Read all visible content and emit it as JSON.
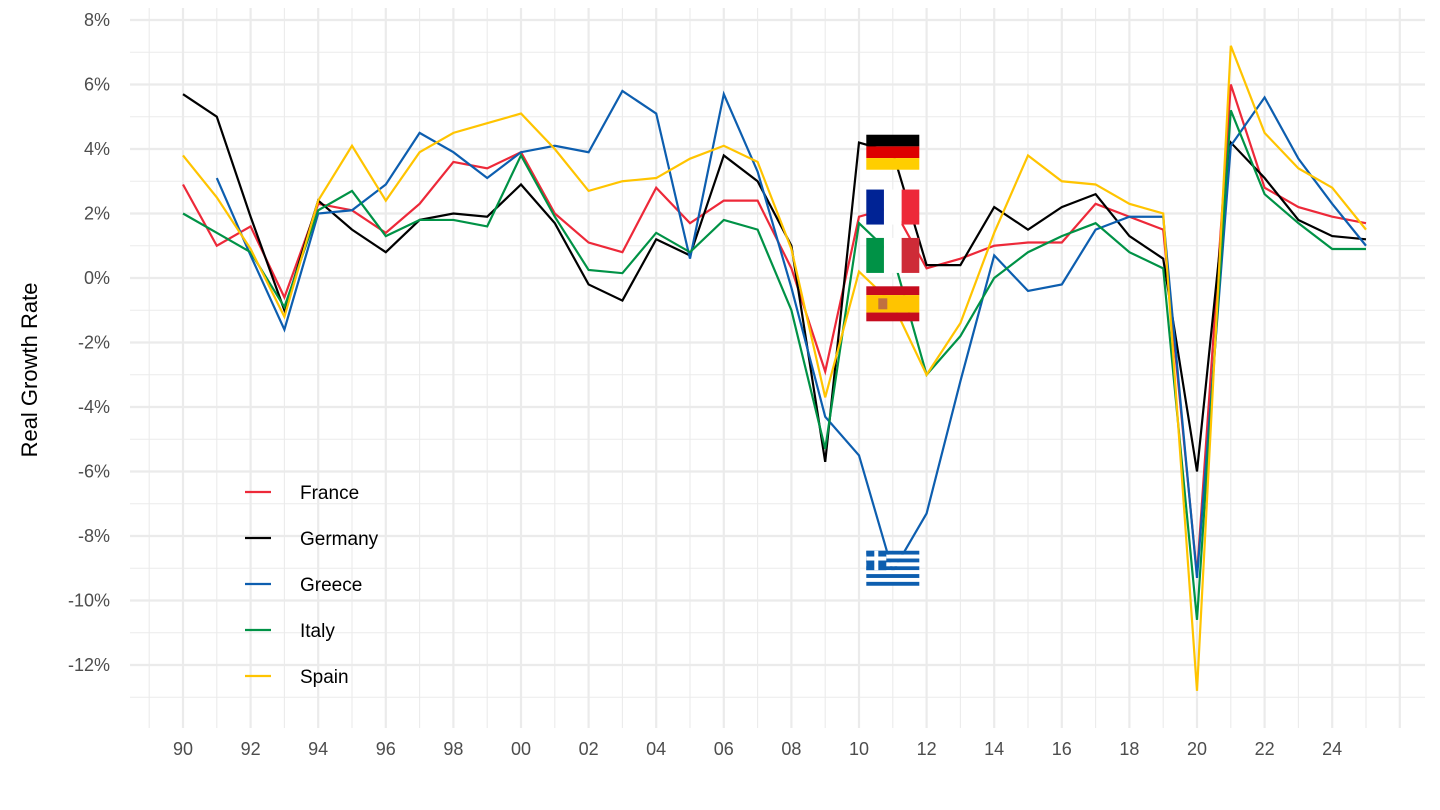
{
  "chart_data": {
    "type": "line",
    "title": "",
    "xlabel": "",
    "ylabel": "Real Growth Rate",
    "xlim": [
      1989,
      2026
    ],
    "ylim": [
      -13,
      8
    ],
    "x_ticks": [
      1990,
      1992,
      1994,
      1996,
      1998,
      2000,
      2002,
      2004,
      2006,
      2008,
      2010,
      2012,
      2014,
      2016,
      2018,
      2020,
      2022,
      2024
    ],
    "x_tick_labels": [
      "90",
      "92",
      "94",
      "96",
      "98",
      "00",
      "02",
      "04",
      "06",
      "08",
      "10",
      "12",
      "14",
      "16",
      "18",
      "20",
      "22",
      "24"
    ],
    "y_ticks": [
      8,
      6,
      4,
      2,
      0,
      -2,
      -4,
      -6,
      -8,
      -10,
      -12
    ],
    "y_tick_labels": [
      "8%",
      "6%",
      "4%",
      "2%",
      "0%",
      "-2%",
      "-4%",
      "-6%",
      "-8%",
      "-10%",
      "-12%"
    ],
    "grid": true,
    "legend_position": "bottom-left",
    "series": [
      {
        "name": "France",
        "color": "#ED2939",
        "start": 1990,
        "values": [
          2.9,
          1.0,
          1.6,
          -0.6,
          2.3,
          2.1,
          1.4,
          2.3,
          3.6,
          3.4,
          3.9,
          2.0,
          1.1,
          0.8,
          2.8,
          1.7,
          2.4,
          2.4,
          0.3,
          -2.9,
          1.9,
          2.2,
          0.3,
          0.6,
          1.0,
          1.1,
          1.1,
          2.3,
          1.9,
          1.5,
          -9.2,
          6.0,
          2.8,
          2.2,
          1.9,
          1.7
        ]
      },
      {
        "name": "Germany",
        "color": "#000000",
        "start": 1990,
        "values": [
          5.7,
          5.0,
          1.9,
          -1.0,
          2.4,
          1.5,
          0.8,
          1.8,
          2.0,
          1.9,
          2.9,
          1.7,
          -0.2,
          -0.7,
          1.2,
          0.7,
          3.8,
          3.0,
          1.0,
          -5.7,
          4.2,
          3.9,
          0.4,
          0.4,
          2.2,
          1.5,
          2.2,
          2.6,
          1.3,
          0.6,
          -6.0,
          4.2,
          3.1,
          1.8,
          1.3,
          1.2
        ]
      },
      {
        "name": "Greece",
        "color": "#0D5EAF",
        "start": 1991,
        "values": [
          3.1,
          0.7,
          -1.6,
          2.0,
          2.1,
          2.9,
          4.5,
          3.9,
          3.1,
          3.9,
          4.1,
          3.9,
          5.8,
          5.1,
          0.6,
          5.7,
          3.3,
          -0.3,
          -4.3,
          -5.5,
          -9.1,
          -7.3,
          -3.2,
          0.7,
          -0.4,
          -0.2,
          1.5,
          1.9,
          1.9,
          -9.3,
          4.1,
          5.6,
          3.7,
          2.3,
          1.0
        ]
      },
      {
        "name": "Italy",
        "color": "#009246",
        "start": 1990,
        "values": [
          2.0,
          1.4,
          0.8,
          -0.9,
          2.1,
          2.7,
          1.3,
          1.8,
          1.8,
          1.6,
          3.8,
          1.9,
          0.25,
          0.15,
          1.4,
          0.8,
          1.8,
          1.5,
          -1.0,
          -5.3,
          1.7,
          0.7,
          -3.0,
          -1.8,
          0.0,
          0.8,
          1.3,
          1.7,
          0.8,
          0.3,
          -10.6,
          5.2,
          2.6,
          1.7,
          0.9,
          0.9
        ]
      },
      {
        "name": "Spain",
        "color": "#FFC400",
        "start": 1990,
        "values": [
          3.8,
          2.5,
          0.9,
          -1.2,
          2.4,
          4.1,
          2.4,
          3.9,
          4.5,
          4.8,
          5.1,
          4.0,
          2.7,
          3.0,
          3.1,
          3.7,
          4.1,
          3.6,
          0.9,
          -3.7,
          0.2,
          -0.8,
          -3.0,
          -1.4,
          1.4,
          3.8,
          3.0,
          2.9,
          2.3,
          2.0,
          -12.8,
          7.2,
          4.5,
          3.4,
          2.8,
          1.5
        ]
      }
    ],
    "flag_annotations": [
      {
        "country": "Germany",
        "icon": "germany-flag-icon",
        "x": 2011,
        "y": 3.9
      },
      {
        "country": "France",
        "icon": "france-flag-icon",
        "x": 2011,
        "y": 2.2
      },
      {
        "country": "Italy",
        "icon": "italy-flag-icon",
        "x": 2011,
        "y": 0.7
      },
      {
        "country": "Spain",
        "icon": "spain-flag-icon",
        "x": 2011,
        "y": -0.8
      },
      {
        "country": "Greece",
        "icon": "greece-flag-icon",
        "x": 2011,
        "y": -9.0
      }
    ]
  }
}
